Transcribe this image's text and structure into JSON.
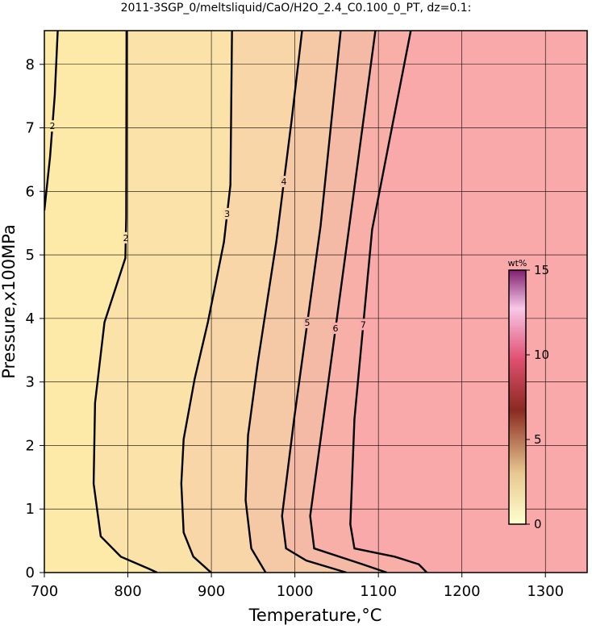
{
  "chart_data": {
    "type": "contour",
    "title": "2011-3SGP_0/meltsliquid/CaO/H2O_2.4_C0.100_0_PT, dz=0.1:",
    "x_label": "Temperature,°C",
    "y_label": "Pressure,x100MPa",
    "xlim": [
      700,
      1350
    ],
    "ylim": [
      0,
      8.53
    ],
    "xticks": [
      700,
      800,
      900,
      1000,
      1100,
      1200,
      1300
    ],
    "yticks": [
      0,
      1,
      2,
      3,
      4,
      5,
      6,
      7,
      8
    ],
    "grid": true,
    "contours": [
      {
        "level": 2,
        "x": [
          700,
          706.8,
          712.5,
          716
        ],
        "y": [
          5.7,
          6.54,
          7.52,
          8.53
        ]
      },
      {
        "level": 2,
        "x": [
          798.4,
          798,
          797,
          772,
          760.7,
          759,
          767.5,
          791.6,
          825,
          835
        ],
        "y": [
          8.53,
          5.59,
          4.95,
          3.94,
          2.67,
          1.4,
          0.57,
          0.25,
          0.06,
          0
        ]
      },
      {
        "level": 3,
        "x": [
          924.7,
          922.8,
          915,
          895.8,
          880,
          866.8,
          864,
          866.8,
          878.4,
          899.6
        ],
        "y": [
          8.53,
          6.1,
          5.2,
          3.94,
          3.05,
          2.1,
          1.4,
          0.63,
          0.25,
          0
        ]
      },
      {
        "level": 4,
        "x": [
          1008.6,
          996,
          977.7,
          955.5,
          943.9,
          941,
          947.8,
          965
        ],
        "y": [
          8.53,
          7.11,
          5.2,
          3.3,
          2.16,
          1.14,
          0.38,
          0
        ]
      },
      {
        "level": 5,
        "x": [
          1054.9,
          1030.8,
          999,
          984.6,
          989.4,
          1013.5,
          1061.7
        ],
        "y": [
          8.53,
          5.46,
          2.41,
          0.89,
          0.38,
          0.19,
          0
        ]
      },
      {
        "level": 6,
        "x": [
          1096.4,
          1064.6,
          1032.8,
          1018.3,
          1023.1,
          1081,
          1110
        ],
        "y": [
          8.53,
          5.4,
          2.29,
          0.89,
          0.38,
          0.13,
          0
        ]
      },
      {
        "level": 7,
        "x": [
          1138.8,
          1092.5,
          1071.3,
          1066.4,
          1071.3,
          1119.5,
          1148.4,
          1158
        ],
        "y": [
          8.53,
          5.4,
          2.41,
          0.76,
          0.38,
          0.25,
          0.13,
          0
        ]
      }
    ],
    "colorbar": {
      "label": "wt%",
      "lim": [
        0,
        15
      ],
      "ticks": [
        0,
        5,
        10,
        15
      ]
    }
  }
}
